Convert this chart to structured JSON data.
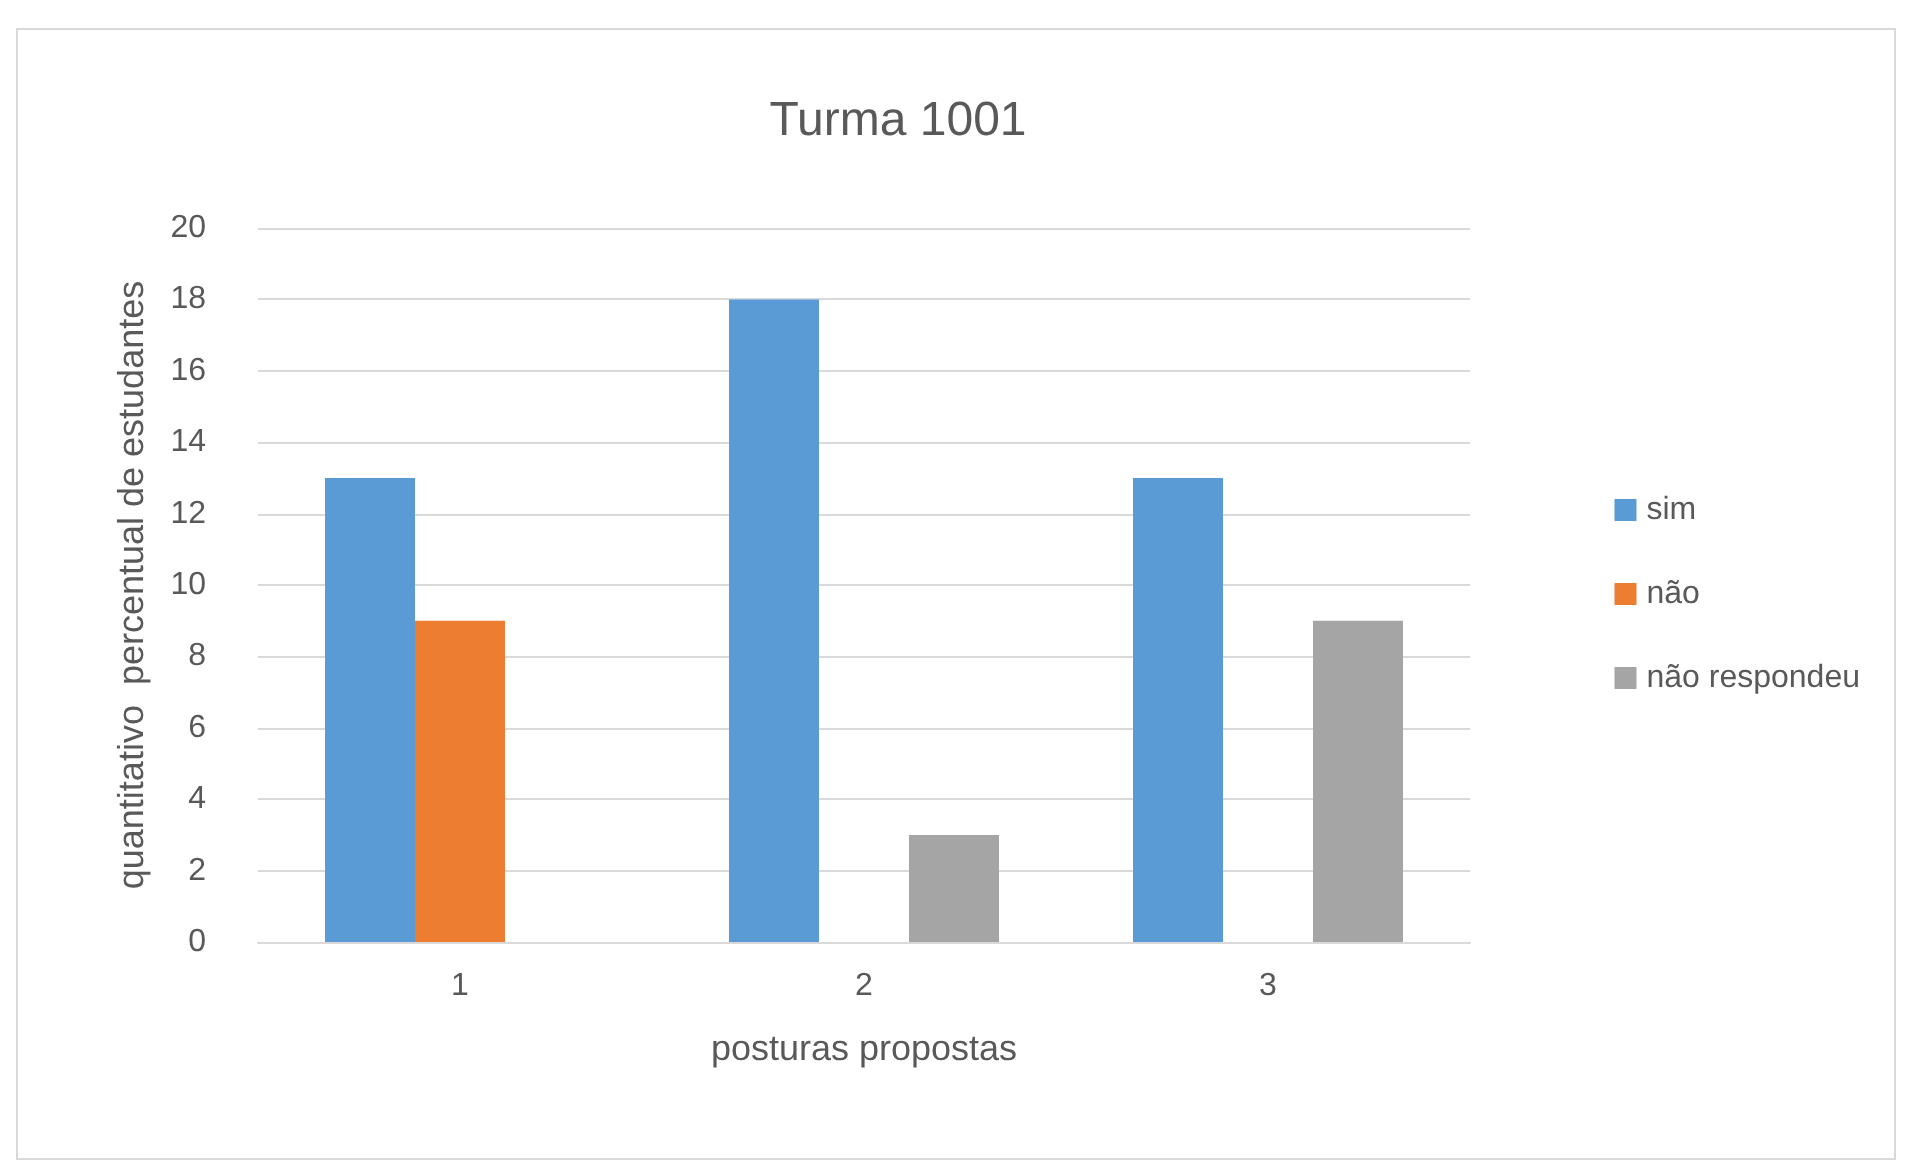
{
  "chart_data": {
    "type": "bar",
    "title": "Turma 1001",
    "xlabel": "posturas propostas",
    "ylabel": "quantitativo  percentual de estudantes",
    "categories": [
      "1",
      "2",
      "3"
    ],
    "series": [
      {
        "name": "sim",
        "color": "#5b9bd5",
        "values": [
          13,
          18,
          13
        ]
      },
      {
        "name": "não",
        "color": "#ed7d31",
        "values": [
          9,
          0,
          0
        ]
      },
      {
        "name": "não respondeu",
        "color": "#a5a5a5",
        "values": [
          0,
          3,
          9
        ]
      }
    ],
    "ylim": [
      0,
      20
    ],
    "yticks": [
      0,
      2,
      4,
      6,
      8,
      10,
      12,
      14,
      16,
      18,
      20
    ],
    "grid": "y",
    "legend": "right"
  }
}
